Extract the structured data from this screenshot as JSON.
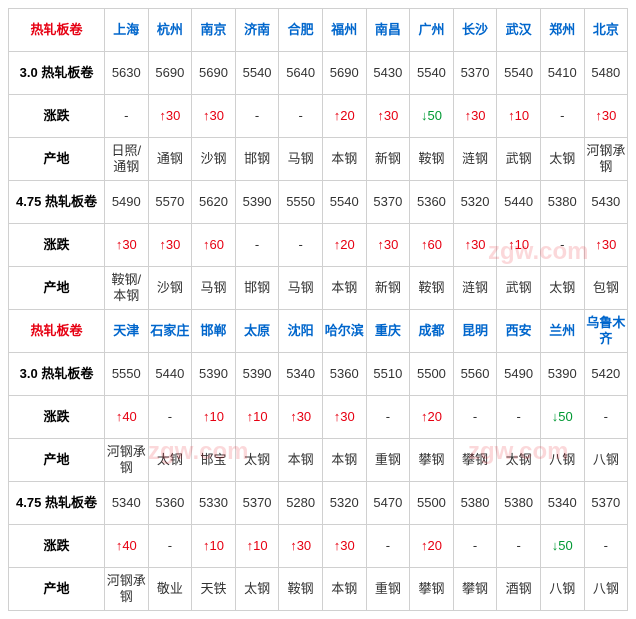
{
  "colors": {
    "up": "#e60012",
    "down": "#009933",
    "city": "#0066cc",
    "border": "#d0d0d0",
    "text": "#333333"
  },
  "watermark": "zgw.com",
  "sections": [
    {
      "header_label": "热轧板卷",
      "cities": [
        "上海",
        "杭州",
        "南京",
        "济南",
        "合肥",
        "福州",
        "南昌",
        "广州",
        "长沙",
        "武汉",
        "郑州",
        "北京"
      ],
      "rows": [
        {
          "label": "3.0 热轧板卷",
          "type": "price",
          "cells": [
            "5630",
            "5690",
            "5690",
            "5540",
            "5640",
            "5690",
            "5430",
            "5540",
            "5370",
            "5540",
            "5410",
            "5480"
          ]
        },
        {
          "label": "涨跌",
          "type": "change",
          "cells": [
            {
              "v": "-",
              "d": "flat"
            },
            {
              "v": "30",
              "d": "up"
            },
            {
              "v": "30",
              "d": "up"
            },
            {
              "v": "-",
              "d": "flat"
            },
            {
              "v": "-",
              "d": "flat"
            },
            {
              "v": "20",
              "d": "up"
            },
            {
              "v": "30",
              "d": "up"
            },
            {
              "v": "50",
              "d": "down"
            },
            {
              "v": "30",
              "d": "up"
            },
            {
              "v": "10",
              "d": "up"
            },
            {
              "v": "-",
              "d": "flat"
            },
            {
              "v": "30",
              "d": "up"
            }
          ]
        },
        {
          "label": "产地",
          "type": "origin",
          "cells": [
            "日照/通钢",
            "通钢",
            "沙钢",
            "邯钢",
            "马钢",
            "本钢",
            "新钢",
            "鞍钢",
            "涟钢",
            "武钢",
            "太钢",
            "河钢承钢"
          ]
        },
        {
          "label": "4.75 热轧板卷",
          "type": "price",
          "cells": [
            "5490",
            "5570",
            "5620",
            "5390",
            "5550",
            "5540",
            "5370",
            "5360",
            "5320",
            "5440",
            "5380",
            "5430"
          ]
        },
        {
          "label": "涨跌",
          "type": "change",
          "cells": [
            {
              "v": "30",
              "d": "up"
            },
            {
              "v": "30",
              "d": "up"
            },
            {
              "v": "60",
              "d": "up"
            },
            {
              "v": "-",
              "d": "flat"
            },
            {
              "v": "-",
              "d": "flat"
            },
            {
              "v": "20",
              "d": "up"
            },
            {
              "v": "30",
              "d": "up"
            },
            {
              "v": "60",
              "d": "up"
            },
            {
              "v": "30",
              "d": "up"
            },
            {
              "v": "10",
              "d": "up"
            },
            {
              "v": "-",
              "d": "flat"
            },
            {
              "v": "30",
              "d": "up"
            }
          ]
        },
        {
          "label": "产地",
          "type": "origin",
          "cells": [
            "鞍钢/本钢",
            "沙钢",
            "马钢",
            "邯钢",
            "马钢",
            "本钢",
            "新钢",
            "鞍钢",
            "涟钢",
            "武钢",
            "太钢",
            "包钢"
          ]
        }
      ]
    },
    {
      "header_label": "热轧板卷",
      "cities": [
        "天津",
        "石家庄",
        "邯郸",
        "太原",
        "沈阳",
        "哈尔滨",
        "重庆",
        "成都",
        "昆明",
        "西安",
        "兰州",
        "乌鲁木齐"
      ],
      "rows": [
        {
          "label": "3.0 热轧板卷",
          "type": "price",
          "cells": [
            "5550",
            "5440",
            "5390",
            "5390",
            "5340",
            "5360",
            "5510",
            "5500",
            "5560",
            "5490",
            "5390",
            "5420"
          ]
        },
        {
          "label": "涨跌",
          "type": "change",
          "cells": [
            {
              "v": "40",
              "d": "up"
            },
            {
              "v": "-",
              "d": "flat"
            },
            {
              "v": "10",
              "d": "up"
            },
            {
              "v": "10",
              "d": "up"
            },
            {
              "v": "30",
              "d": "up"
            },
            {
              "v": "30",
              "d": "up"
            },
            {
              "v": "-",
              "d": "flat"
            },
            {
              "v": "20",
              "d": "up"
            },
            {
              "v": "-",
              "d": "flat"
            },
            {
              "v": "-",
              "d": "flat"
            },
            {
              "v": "50",
              "d": "down"
            },
            {
              "v": "-",
              "d": "flat"
            }
          ]
        },
        {
          "label": "产地",
          "type": "origin",
          "cells": [
            "河钢承钢",
            "太钢",
            "邯宝",
            "太钢",
            "本钢",
            "本钢",
            "重钢",
            "攀钢",
            "攀钢",
            "太钢",
            "八钢",
            "八钢"
          ]
        },
        {
          "label": "4.75 热轧板卷",
          "type": "price",
          "cells": [
            "5340",
            "5360",
            "5330",
            "5370",
            "5280",
            "5320",
            "5470",
            "5500",
            "5380",
            "5380",
            "5340",
            "5370"
          ]
        },
        {
          "label": "涨跌",
          "type": "change",
          "cells": [
            {
              "v": "40",
              "d": "up"
            },
            {
              "v": "-",
              "d": "flat"
            },
            {
              "v": "10",
              "d": "up"
            },
            {
              "v": "10",
              "d": "up"
            },
            {
              "v": "30",
              "d": "up"
            },
            {
              "v": "30",
              "d": "up"
            },
            {
              "v": "-",
              "d": "flat"
            },
            {
              "v": "20",
              "d": "up"
            },
            {
              "v": "-",
              "d": "flat"
            },
            {
              "v": "-",
              "d": "flat"
            },
            {
              "v": "50",
              "d": "down"
            },
            {
              "v": "-",
              "d": "flat"
            }
          ]
        },
        {
          "label": "产地",
          "type": "origin",
          "cells": [
            "河钢承钢",
            "敬业",
            "天铁",
            "太钢",
            "鞍钢",
            "本钢",
            "重钢",
            "攀钢",
            "攀钢",
            "酒钢",
            "八钢",
            "八钢"
          ]
        }
      ]
    }
  ]
}
